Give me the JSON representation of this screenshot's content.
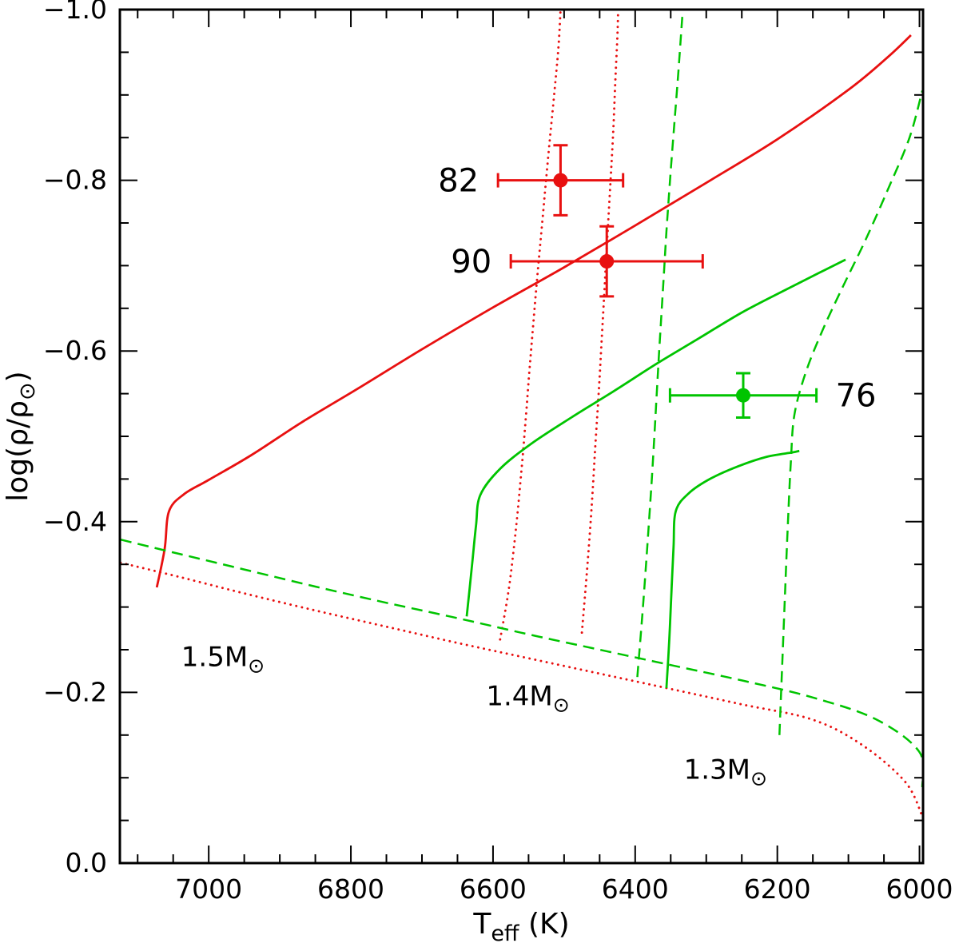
{
  "figure": {
    "background": "#ffffff",
    "frame_color": "#000000"
  },
  "chart_data": {
    "type": "line",
    "title": "",
    "xlabel": {
      "main": "T",
      "sub": "eff",
      "rest": " (K)"
    },
    "ylabel": {
      "main": "log(ρ/ρ",
      "sub": "⊙",
      "rest": ")"
    },
    "x_axis": {
      "range": [
        7125,
        5995
      ],
      "reversed_display": true,
      "major_ticks": [
        7000,
        6800,
        6600,
        6400,
        6200,
        6000
      ],
      "minor_step": 50
    },
    "y_axis": {
      "range": [
        -1.0,
        0.0
      ],
      "value_increases_downward": true,
      "major_ticks": [
        -1.0,
        -0.8,
        -0.6,
        -0.4,
        -0.2,
        0.0
      ],
      "minor_step": 0.05
    },
    "colors": {
      "red": "#e81010",
      "green": "#00c400",
      "frame": "#000000"
    },
    "series": [
      {
        "name": "track-1.5-solid",
        "color": "red",
        "style": "solid",
        "points": [
          [
            7073,
            -0.323
          ],
          [
            7062,
            -0.368
          ],
          [
            7056,
            -0.412
          ],
          [
            7035,
            -0.432
          ],
          [
            7000,
            -0.449
          ],
          [
            6940,
            -0.478
          ],
          [
            6870,
            -0.516
          ],
          [
            6790,
            -0.556
          ],
          [
            6700,
            -0.602
          ],
          [
            6600,
            -0.651
          ],
          [
            6500,
            -0.698
          ],
          [
            6400,
            -0.747
          ],
          [
            6300,
            -0.797
          ],
          [
            6200,
            -0.848
          ],
          [
            6100,
            -0.906
          ],
          [
            6045,
            -0.944
          ],
          [
            6012,
            -0.97
          ]
        ]
      },
      {
        "name": "zams-1.5-dotted",
        "color": "red",
        "style": "dotted",
        "points": [
          [
            7124,
            -0.352
          ],
          [
            7040,
            -0.335
          ],
          [
            6950,
            -0.316
          ],
          [
            6850,
            -0.296
          ],
          [
            6750,
            -0.277
          ],
          [
            6650,
            -0.258
          ],
          [
            6550,
            -0.24
          ],
          [
            6450,
            -0.222
          ],
          [
            6350,
            -0.204
          ],
          [
            6250,
            -0.186
          ],
          [
            6150,
            -0.168
          ],
          [
            6080,
            -0.138
          ],
          [
            6020,
            -0.095
          ],
          [
            5996,
            -0.055
          ]
        ]
      },
      {
        "name": "track-1.5-dotted-a",
        "color": "red",
        "style": "dotted",
        "points": [
          [
            6590,
            -0.262
          ],
          [
            6578,
            -0.32
          ],
          [
            6568,
            -0.39
          ],
          [
            6560,
            -0.46
          ],
          [
            6554,
            -0.52
          ],
          [
            6549,
            -0.575
          ],
          [
            6544,
            -0.625
          ],
          [
            6539,
            -0.675
          ],
          [
            6533,
            -0.73
          ],
          [
            6527,
            -0.785
          ],
          [
            6521,
            -0.84
          ],
          [
            6514,
            -0.9
          ],
          [
            6508,
            -0.955
          ],
          [
            6505,
            -1.0
          ]
        ]
      },
      {
        "name": "track-1.5-dotted-b",
        "color": "red",
        "style": "dotted",
        "points": [
          [
            6475,
            -0.27
          ],
          [
            6468,
            -0.34
          ],
          [
            6461,
            -0.42
          ],
          [
            6456,
            -0.49
          ],
          [
            6451,
            -0.555
          ],
          [
            6447,
            -0.615
          ],
          [
            6443,
            -0.675
          ],
          [
            6439,
            -0.735
          ],
          [
            6435,
            -0.795
          ],
          [
            6431,
            -0.855
          ],
          [
            6428,
            -0.915
          ],
          [
            6425,
            -0.97
          ],
          [
            6424,
            -1.0
          ]
        ]
      },
      {
        "name": "zams-green-dashed",
        "color": "green",
        "style": "dashed",
        "points": [
          [
            7124,
            -0.379
          ],
          [
            7040,
            -0.362
          ],
          [
            6950,
            -0.344
          ],
          [
            6850,
            -0.324
          ],
          [
            6750,
            -0.305
          ],
          [
            6650,
            -0.287
          ],
          [
            6550,
            -0.268
          ],
          [
            6450,
            -0.25
          ],
          [
            6350,
            -0.232
          ],
          [
            6250,
            -0.214
          ],
          [
            6150,
            -0.194
          ],
          [
            6060,
            -0.168
          ],
          [
            6000,
            -0.13
          ],
          [
            5996,
            -0.089
          ]
        ]
      },
      {
        "name": "track-1.4-solid",
        "color": "green",
        "style": "solid",
        "points": [
          [
            6637,
            -0.289
          ],
          [
            6630,
            -0.345
          ],
          [
            6624,
            -0.395
          ],
          [
            6618,
            -0.431
          ],
          [
            6590,
            -0.462
          ],
          [
            6545,
            -0.492
          ],
          [
            6490,
            -0.522
          ],
          [
            6430,
            -0.553
          ],
          [
            6370,
            -0.585
          ],
          [
            6310,
            -0.615
          ],
          [
            6250,
            -0.645
          ],
          [
            6190,
            -0.671
          ],
          [
            6140,
            -0.692
          ],
          [
            6104,
            -0.707
          ]
        ]
      },
      {
        "name": "track-1.3-solid",
        "color": "green",
        "style": "solid",
        "points": [
          [
            6356,
            -0.205
          ],
          [
            6352,
            -0.262
          ],
          [
            6349,
            -0.318
          ],
          [
            6346,
            -0.37
          ],
          [
            6343,
            -0.412
          ],
          [
            6325,
            -0.433
          ],
          [
            6295,
            -0.45
          ],
          [
            6255,
            -0.465
          ],
          [
            6215,
            -0.476
          ],
          [
            6180,
            -0.481
          ],
          [
            6169,
            -0.483
          ]
        ]
      },
      {
        "name": "track-1.4-dashed",
        "color": "green",
        "style": "dashed",
        "points": [
          [
            6397,
            -0.218
          ],
          [
            6390,
            -0.29
          ],
          [
            6383,
            -0.37
          ],
          [
            6377,
            -0.445
          ],
          [
            6372,
            -0.515
          ],
          [
            6368,
            -0.575
          ],
          [
            6364,
            -0.63
          ],
          [
            6360,
            -0.685
          ],
          [
            6356,
            -0.74
          ],
          [
            6351,
            -0.8
          ],
          [
            6345,
            -0.865
          ],
          [
            6339,
            -0.93
          ],
          [
            6333,
            -1.0
          ]
        ]
      },
      {
        "name": "track-1.3-dashed",
        "color": "green",
        "style": "dashed",
        "points": [
          [
            6197,
            -0.15
          ],
          [
            6193,
            -0.235
          ],
          [
            6189,
            -0.32
          ],
          [
            6185,
            -0.4
          ],
          [
            6181,
            -0.47
          ],
          [
            6176,
            -0.525
          ],
          [
            6160,
            -0.575
          ],
          [
            6136,
            -0.625
          ],
          [
            6108,
            -0.675
          ],
          [
            6076,
            -0.73
          ],
          [
            6044,
            -0.79
          ],
          [
            6014,
            -0.85
          ],
          [
            5996,
            -0.905
          ]
        ]
      }
    ],
    "data_points": [
      {
        "label": "82",
        "color": "red",
        "teff": 6505,
        "logrho": -0.8,
        "teff_err": 88,
        "logrho_err": 0.041,
        "label_side": "left"
      },
      {
        "label": "90",
        "color": "red",
        "teff": 6440,
        "logrho": -0.705,
        "teff_err": 135,
        "logrho_err": 0.041,
        "label_side": "left"
      },
      {
        "label": "76",
        "color": "green",
        "teff": 6248,
        "logrho": -0.548,
        "teff_err": 103,
        "logrho_err": 0.026,
        "label_side": "right"
      }
    ],
    "mass_labels": [
      {
        "text": "1.5M",
        "sun": "⊙",
        "color": "red",
        "teff": 6980,
        "logrho": -0.242
      },
      {
        "text": "1.4M",
        "sun": "⊙",
        "color": "green",
        "teff": 6551,
        "logrho": -0.196
      },
      {
        "text": "1.3M",
        "sun": "⊙",
        "color": "green",
        "teff": 6273,
        "logrho": -0.11
      }
    ]
  }
}
